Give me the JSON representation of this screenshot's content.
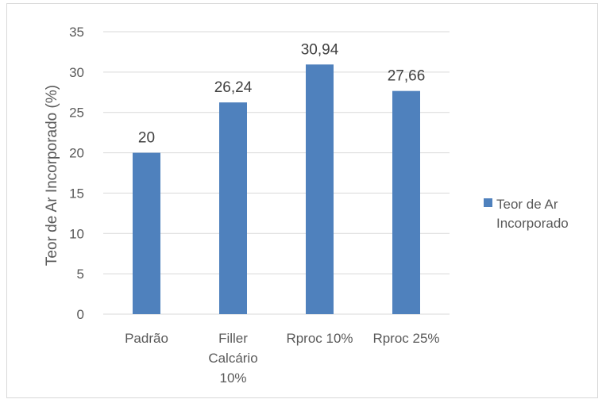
{
  "chart_data": {
    "type": "bar",
    "categories": [
      [
        "Padrão"
      ],
      [
        "Filler",
        "Calcário",
        "10%"
      ],
      [
        "Rproc 10%"
      ],
      [
        "Rproc 25%"
      ]
    ],
    "series": [
      {
        "name": "Teor de Ar Incorporado",
        "name_lines": [
          "Teor de Ar",
          "Incorporado"
        ],
        "values": [
          20,
          26.24,
          30.94,
          27.66
        ],
        "data_labels": [
          "20",
          "26,24",
          "30,94",
          "27,66"
        ],
        "color": "#4f81bd"
      }
    ],
    "title": "",
    "xlabel": "",
    "ylabel": "Teor de Ar Incorporado (%)",
    "ylim": [
      0,
      35
    ],
    "yticks": [
      0,
      5,
      10,
      15,
      20,
      25,
      30,
      35
    ],
    "grid": true,
    "gridline_color": "#d9d9d9",
    "legend_position": "right"
  }
}
